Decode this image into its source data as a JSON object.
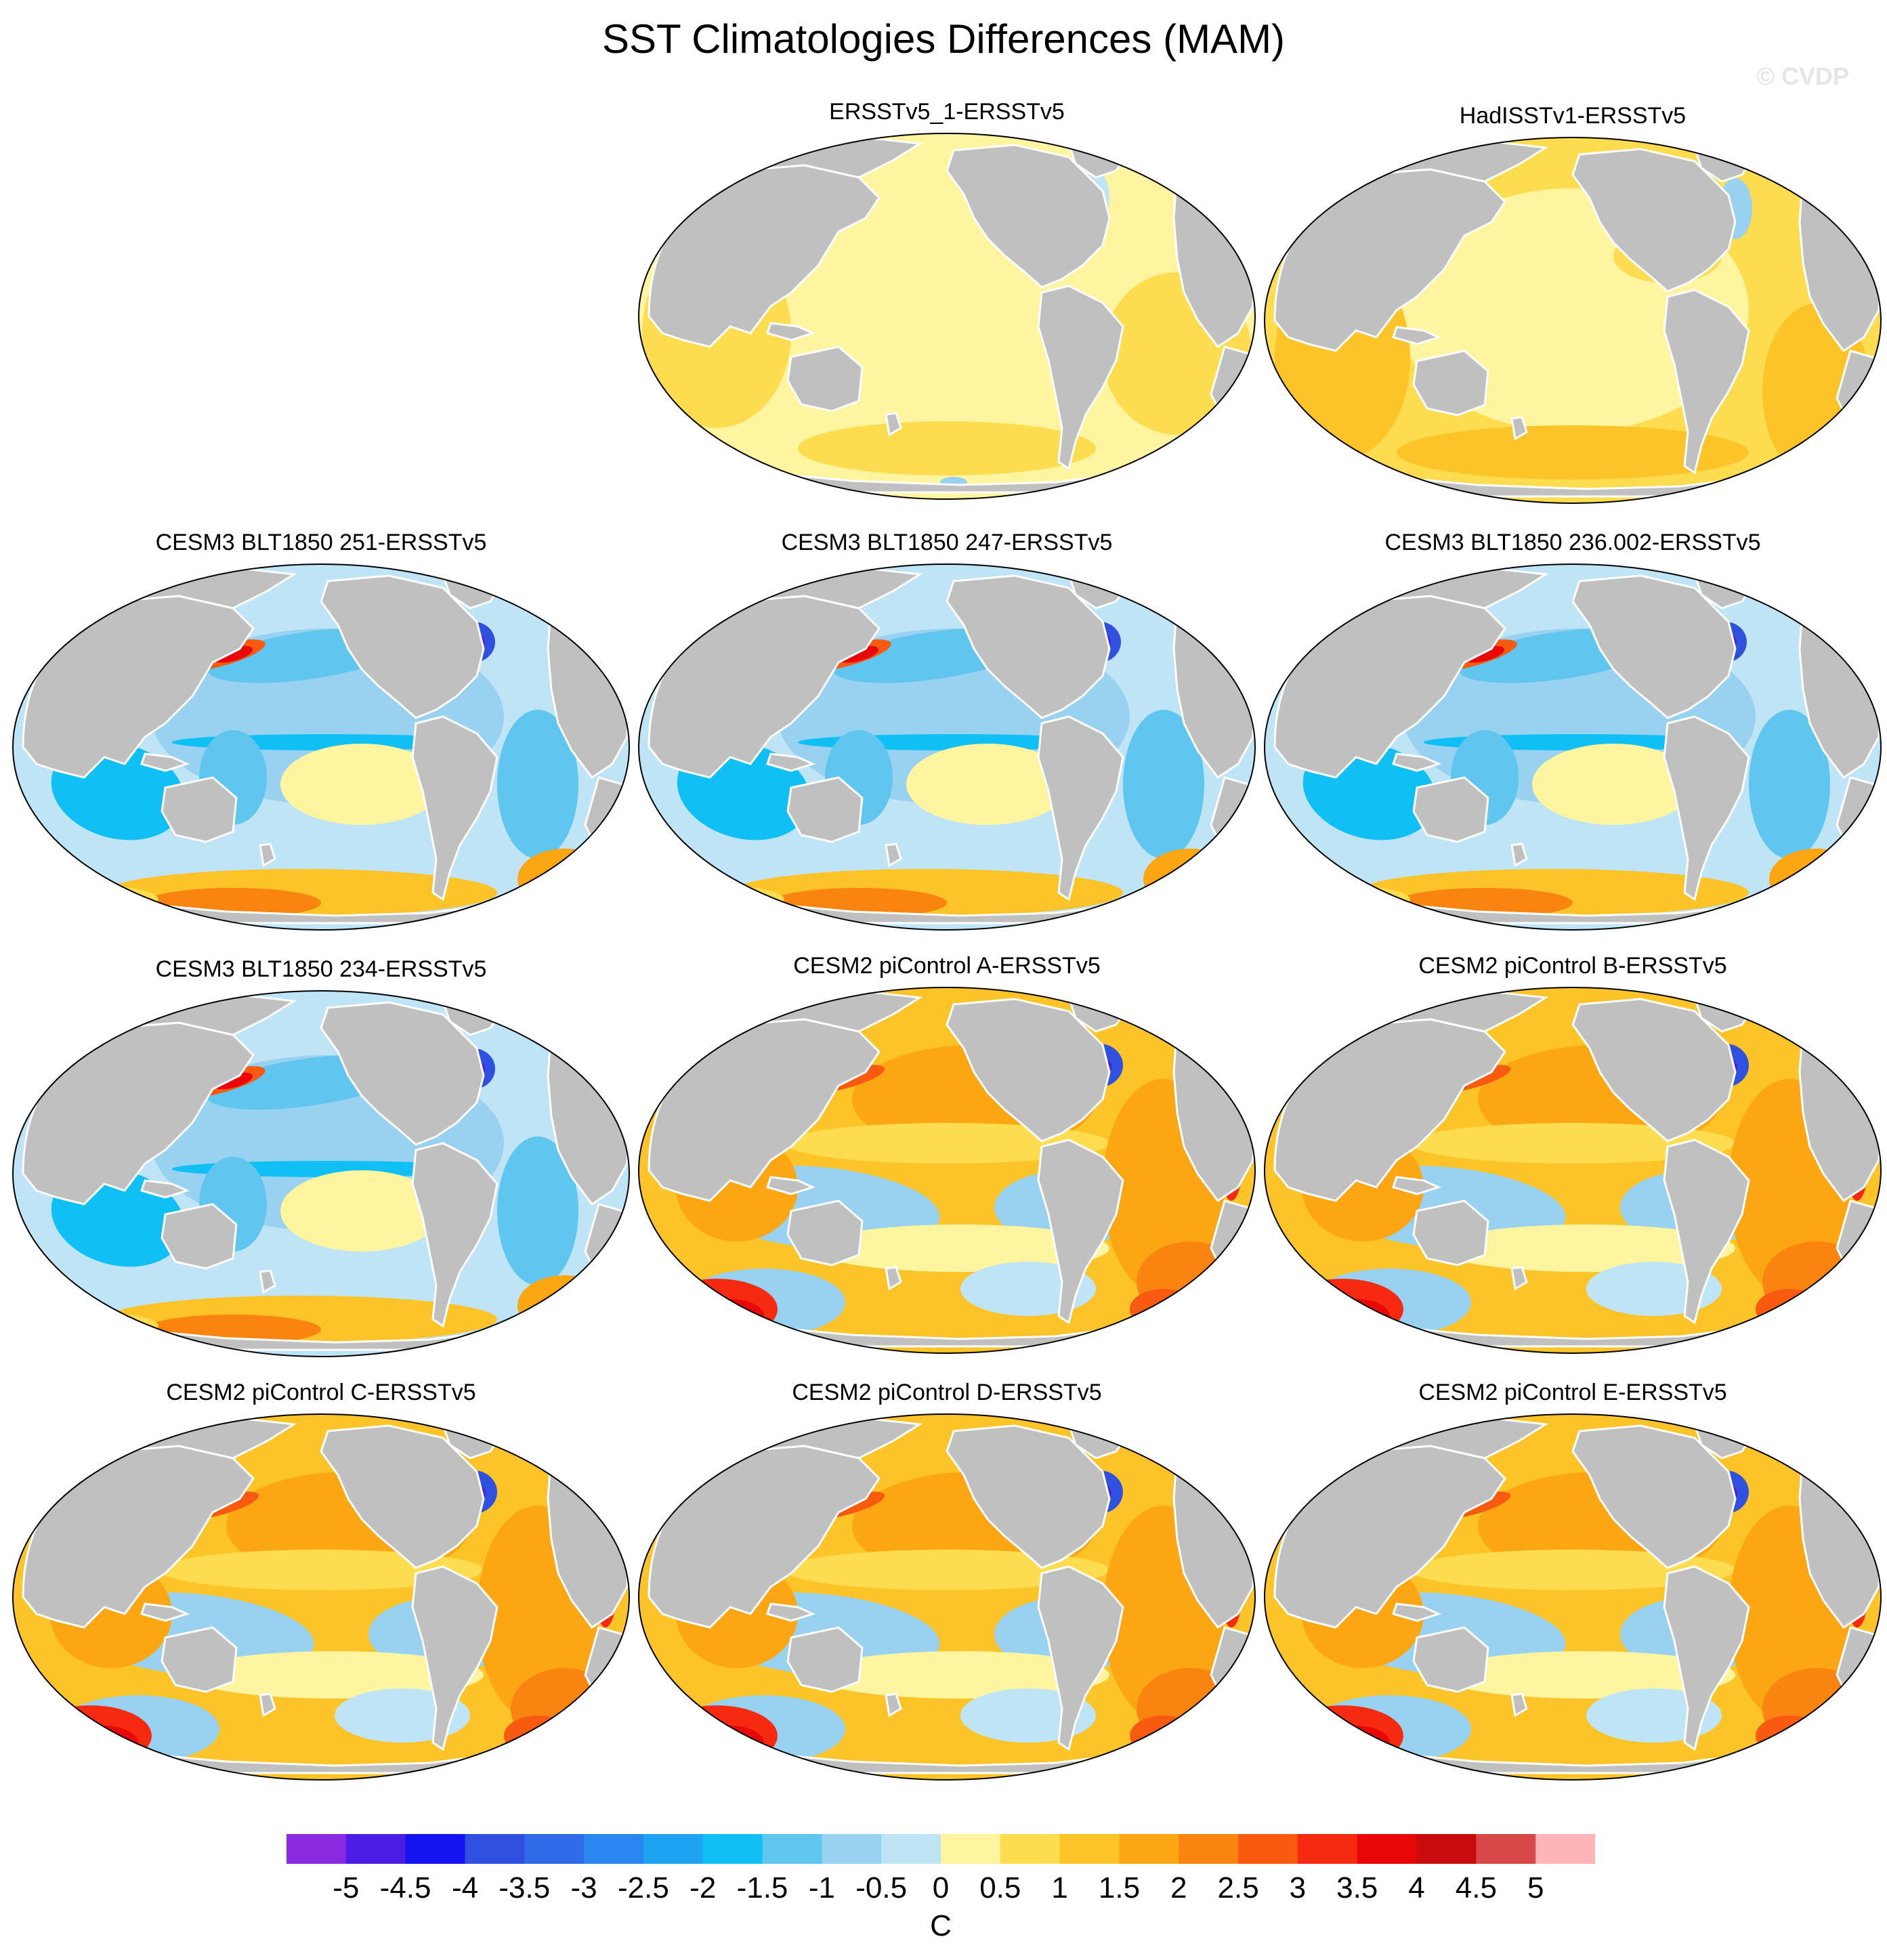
{
  "title": "SST Climatologies Differences (MAM)",
  "watermark": "© CVDP",
  "panels": [
    {
      "id": "p1",
      "title": "ERSSTv5_1-ERSSTv5",
      "pattern": "tiny"
    },
    {
      "id": "p2",
      "title": "HadISSTv1-ERSSTv5",
      "pattern": "small"
    },
    {
      "id": "p3",
      "title": "CESM3 BLT1850 251-ERSSTv5",
      "pattern": "cesm3"
    },
    {
      "id": "p4",
      "title": "CESM3 BLT1850 247-ERSSTv5",
      "pattern": "cesm3"
    },
    {
      "id": "p5",
      "title": "CESM3 BLT1850 236.002-ERSSTv5",
      "pattern": "cesm3"
    },
    {
      "id": "p6",
      "title": "CESM3 BLT1850 234-ERSSTv5",
      "pattern": "cesm3"
    },
    {
      "id": "p7",
      "title": "CESM2 piControl A-ERSSTv5",
      "pattern": "cesm2"
    },
    {
      "id": "p8",
      "title": "CESM2 piControl B-ERSSTv5",
      "pattern": "cesm2"
    },
    {
      "id": "p9",
      "title": "CESM2 piControl C-ERSSTv5",
      "pattern": "cesm2"
    },
    {
      "id": "p10",
      "title": "CESM2 piControl D-ERSSTv5",
      "pattern": "cesm2"
    },
    {
      "id": "p11",
      "title": "CESM2 piControl E-ERSSTv5",
      "pattern": "cesm2"
    }
  ],
  "colorbar": {
    "ticks": [
      "-5",
      "-4.5",
      "-4",
      "-3.5",
      "-3",
      "-2.5",
      "-2",
      "-1.5",
      "-1",
      "-0.5",
      "0",
      "0.5",
      "1",
      "1.5",
      "2",
      "2.5",
      "3",
      "3.5",
      "4",
      "4.5",
      "5"
    ],
    "colors": [
      "#8a2be2",
      "#4b1ee6",
      "#1414f0",
      "#3050e0",
      "#2f6ae8",
      "#2a86f0",
      "#1ea3f2",
      "#10c0f5",
      "#60c6ef",
      "#98d2f0",
      "#bfe4f6",
      "#fff5a0",
      "#fddc50",
      "#fcc428",
      "#fca614",
      "#fa8410",
      "#f85a10",
      "#f52a10",
      "#e80808",
      "#c80c0c",
      "#d84848",
      "#ffb4b8"
    ],
    "unit": "C"
  },
  "colors": {
    "land": "#c0c0c0",
    "coast": "#ffffff",
    "background": "#ffffff"
  }
}
